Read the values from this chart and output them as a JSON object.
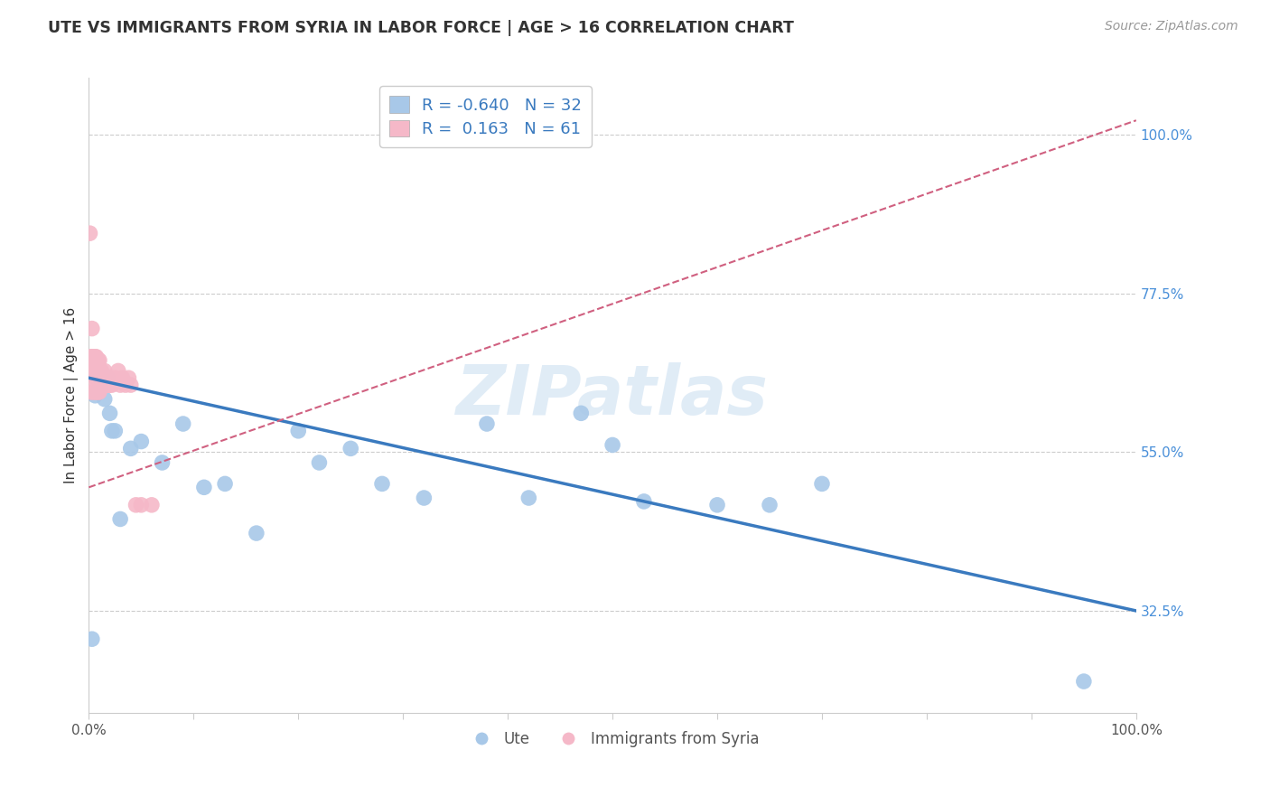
{
  "title": "UTE VS IMMIGRANTS FROM SYRIA IN LABOR FORCE | AGE > 16 CORRELATION CHART",
  "source": "Source: ZipAtlas.com",
  "ylabel": "In Labor Force | Age > 16",
  "xlim": [
    0.0,
    1.0
  ],
  "ylim": [
    0.18,
    1.08
  ],
  "y_ticks_right": [
    1.0,
    0.775,
    0.55,
    0.325
  ],
  "y_tick_labels_right": [
    "100.0%",
    "77.5%",
    "55.0%",
    "32.5%"
  ],
  "legend_r_blue": "-0.640",
  "legend_n_blue": "32",
  "legend_r_pink": "0.163",
  "legend_n_pink": "61",
  "blue_color": "#a8c8e8",
  "blue_line_color": "#3a7abf",
  "pink_color": "#f5b8c8",
  "pink_line_color": "#d06080",
  "watermark": "ZIPatlas",
  "background_color": "#ffffff",
  "grid_color": "#cccccc",
  "ute_points_x": [
    0.003,
    0.006,
    0.008,
    0.01,
    0.012,
    0.015,
    0.018,
    0.02,
    0.022,
    0.025,
    0.03,
    0.04,
    0.05,
    0.07,
    0.09,
    0.11,
    0.13,
    0.16,
    0.2,
    0.22,
    0.25,
    0.28,
    0.32,
    0.38,
    0.42,
    0.47,
    0.5,
    0.53,
    0.6,
    0.65,
    0.7,
    0.95
  ],
  "ute_points_y": [
    0.285,
    0.63,
    0.655,
    0.64,
    0.655,
    0.625,
    0.655,
    0.605,
    0.58,
    0.58,
    0.455,
    0.555,
    0.565,
    0.535,
    0.59,
    0.5,
    0.505,
    0.435,
    0.58,
    0.535,
    0.555,
    0.505,
    0.485,
    0.59,
    0.485,
    0.605,
    0.56,
    0.48,
    0.475,
    0.475,
    0.505,
    0.225
  ],
  "syria_points_x": [
    0.001,
    0.002,
    0.002,
    0.003,
    0.003,
    0.004,
    0.004,
    0.005,
    0.005,
    0.005,
    0.006,
    0.006,
    0.006,
    0.007,
    0.007,
    0.007,
    0.007,
    0.008,
    0.008,
    0.008,
    0.009,
    0.009,
    0.009,
    0.009,
    0.01,
    0.01,
    0.01,
    0.01,
    0.011,
    0.011,
    0.012,
    0.012,
    0.012,
    0.013,
    0.013,
    0.014,
    0.014,
    0.015,
    0.015,
    0.015,
    0.016,
    0.016,
    0.017,
    0.017,
    0.018,
    0.018,
    0.019,
    0.019,
    0.02,
    0.021,
    0.022,
    0.025,
    0.028,
    0.03,
    0.032,
    0.035,
    0.038,
    0.04,
    0.045,
    0.05,
    0.06
  ],
  "syria_points_y": [
    0.86,
    0.635,
    0.685,
    0.685,
    0.725,
    0.635,
    0.675,
    0.655,
    0.685,
    0.675,
    0.635,
    0.665,
    0.685,
    0.635,
    0.655,
    0.665,
    0.685,
    0.655,
    0.665,
    0.675,
    0.635,
    0.65,
    0.665,
    0.68,
    0.635,
    0.65,
    0.665,
    0.68,
    0.65,
    0.665,
    0.645,
    0.655,
    0.665,
    0.645,
    0.66,
    0.645,
    0.655,
    0.645,
    0.655,
    0.665,
    0.645,
    0.655,
    0.645,
    0.655,
    0.645,
    0.655,
    0.645,
    0.655,
    0.645,
    0.655,
    0.645,
    0.655,
    0.665,
    0.645,
    0.655,
    0.645,
    0.655,
    0.645,
    0.475,
    0.475,
    0.475
  ]
}
